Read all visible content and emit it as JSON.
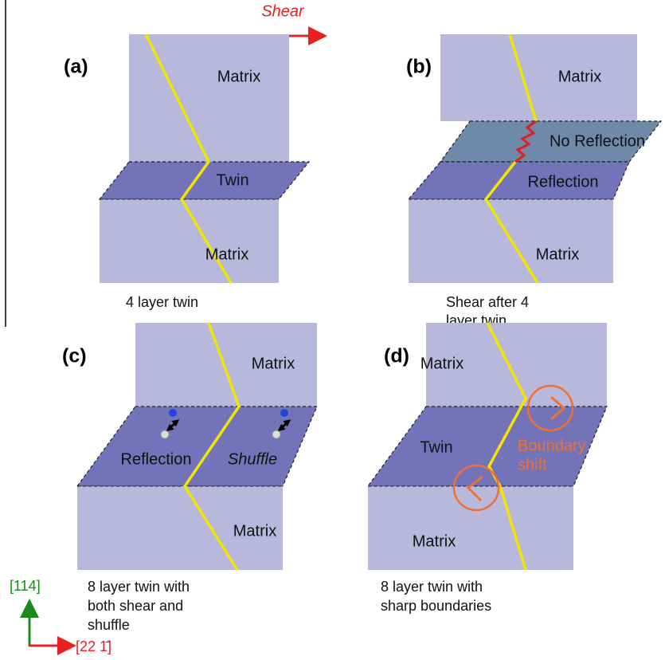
{
  "shear_label": "Shear",
  "panels": [
    {
      "label": "(a)",
      "regions": [
        "Matrix",
        "Twin",
        "Matrix"
      ],
      "caption": [
        "4 layer twin"
      ]
    },
    {
      "label": "(b)",
      "regions": [
        "Matrix",
        "No Reflection",
        "Reflection",
        "Matrix"
      ],
      "caption": [
        "Shear after 4",
        "layer twin"
      ]
    },
    {
      "label": "(c)",
      "regions": [
        "Matrix",
        "Reflection",
        "Shuffle",
        "Matrix"
      ],
      "caption": [
        "8 layer twin with",
        "both shear and",
        "shuffle"
      ]
    },
    {
      "label": "(d)",
      "regions": [
        "Matrix",
        "Twin",
        "Boundary",
        "shift",
        "Matrix"
      ],
      "caption": [
        "8 layer twin with",
        "sharp boundaries"
      ]
    }
  ],
  "axes": {
    "vertical": "[114]",
    "horizontal": "[22 1̄]"
  }
}
